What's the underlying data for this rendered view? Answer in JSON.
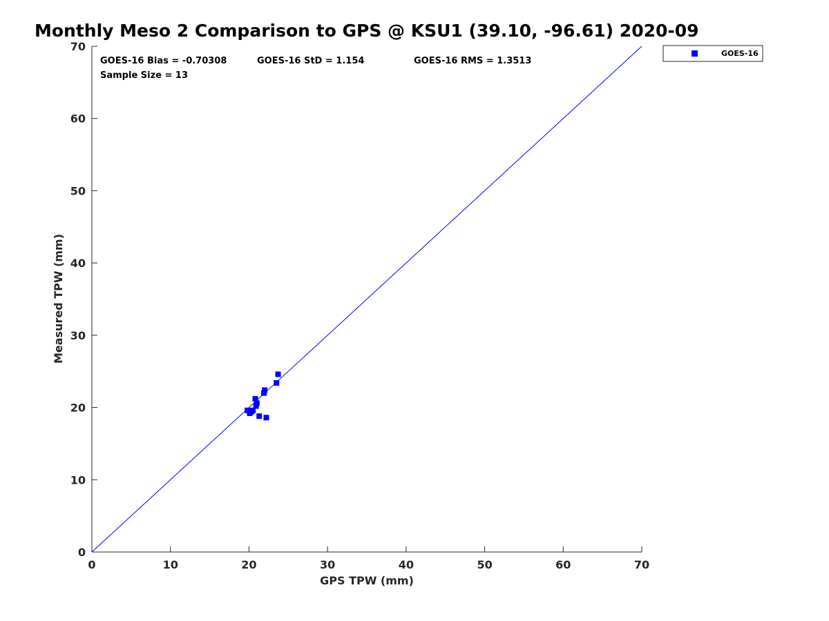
{
  "chart_data": {
    "type": "scatter",
    "title": "Monthly Meso 2 Comparison to GPS @ KSU1 (39.10, -96.61) 2020-09",
    "xlabel": "GPS TPW (mm)",
    "ylabel": "Measured TPW (mm)",
    "xlim": [
      0,
      70
    ],
    "ylim": [
      0,
      70
    ],
    "xticks": [
      "0",
      "10",
      "20",
      "30",
      "40",
      "50",
      "60",
      "70"
    ],
    "yticks": [
      "0",
      "10",
      "20",
      "30",
      "40",
      "50",
      "60",
      "70"
    ],
    "grid": false,
    "legend_position": "outside-top-right",
    "stats": {
      "bias": "GOES-16 Bias = -0.70308",
      "std": "GOES-16 StD = 1.154",
      "rms": "GOES-16 RMS = 1.3513",
      "sample_size": "Sample Size = 13"
    },
    "reference_line": {
      "x": [
        0,
        70
      ],
      "y": [
        0,
        70
      ],
      "color": "#0000ff"
    },
    "series": [
      {
        "name": "GOES-16",
        "color": "#0000ff",
        "marker": "square",
        "x": [
          23.7,
          23.5,
          22.0,
          21.9,
          20.8,
          21.0,
          20.9,
          20.5,
          19.8,
          20.3,
          20.1,
          21.3,
          22.2
        ],
        "y": [
          24.6,
          23.4,
          22.4,
          22.0,
          21.2,
          20.6,
          20.2,
          19.6,
          19.6,
          19.4,
          19.2,
          18.8,
          18.6
        ]
      }
    ]
  }
}
